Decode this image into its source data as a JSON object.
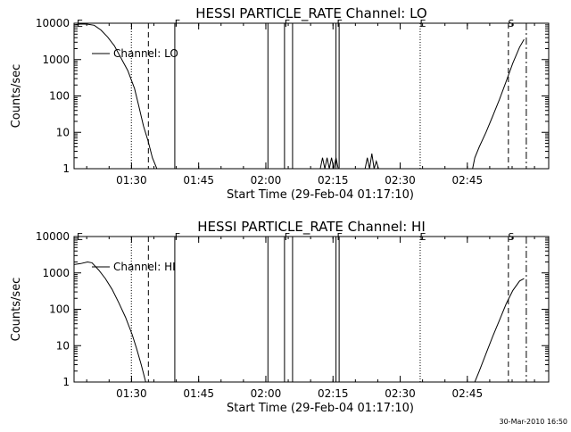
{
  "chart_data": [
    {
      "type": "line",
      "title": "HESSI PARTICLE_RATE Channel: LO",
      "xlabel": "Start Time (29-Feb-04 01:17:10)",
      "ylabel": "Counts/sec",
      "x_unit": "minutes since start",
      "xlim": [
        0,
        106
      ],
      "ylim": [
        1,
        10000
      ],
      "yscale": "log",
      "x_ticks": [
        {
          "label": "01:30",
          "value": 12.83
        },
        {
          "label": "01:45",
          "value": 27.83
        },
        {
          "label": "02:00",
          "value": 42.83
        },
        {
          "label": "02:15",
          "value": 57.83
        },
        {
          "label": "02:30",
          "value": 72.83
        },
        {
          "label": "02:45",
          "value": 87.83
        }
      ],
      "y_ticks": [
        {
          "label": "1",
          "value": 1
        },
        {
          "label": "10",
          "value": 10
        },
        {
          "label": "100",
          "value": 100
        },
        {
          "label": "1000",
          "value": 1000
        },
        {
          "label": "10000",
          "value": 10000
        }
      ],
      "legend": {
        "label": "Channel: LO",
        "placement": "top-left"
      },
      "series": [
        {
          "name": "Channel: LO",
          "segments": [
            [
              [
                0.0,
                9000
              ],
              [
                1.5,
                9500
              ],
              [
                3.0,
                9400
              ],
              [
                4.5,
                8800
              ],
              [
                6.0,
                6500
              ],
              [
                7.5,
                4200
              ],
              [
                9.0,
                2400
              ],
              [
                10.5,
                1100
              ],
              [
                12.0,
                500
              ],
              [
                13.5,
                160
              ],
              [
                14.5,
                50
              ],
              [
                15.5,
                15
              ],
              [
                16.5,
                6
              ],
              [
                17.5,
                2
              ],
              [
                18.5,
                1
              ]
            ],
            [
              [
                55.0,
                1
              ],
              [
                55.5,
                2
              ],
              [
                56.0,
                1
              ],
              [
                56.5,
                2
              ],
              [
                57.0,
                1
              ],
              [
                57.5,
                2
              ],
              [
                58.0,
                1
              ],
              [
                58.5,
                2
              ],
              [
                59.0,
                1
              ]
            ],
            [
              [
                65.0,
                1
              ],
              [
                65.5,
                2
              ],
              [
                66.0,
                1
              ],
              [
                66.5,
                2.6
              ],
              [
                67.0,
                1
              ],
              [
                67.5,
                1.6
              ],
              [
                68.0,
                1
              ]
            ],
            [
              [
                89.0,
                1
              ],
              [
                89.5,
                2
              ],
              [
                90.5,
                4
              ],
              [
                92.0,
                10
              ],
              [
                93.5,
                28
              ],
              [
                95.0,
                80
              ],
              [
                96.5,
                250
              ],
              [
                98.0,
                800
              ],
              [
                99.5,
                2200
              ],
              [
                100.5,
                3600
              ]
            ]
          ]
        }
      ],
      "event_lines": [
        {
          "x": 12.8,
          "style": "dotted"
        },
        {
          "x": 16.6,
          "style": "dashed"
        },
        {
          "x": 22.5,
          "style": "solid"
        },
        {
          "x": 43.3,
          "style": "solid"
        },
        {
          "x": 47.0,
          "style": "solid"
        },
        {
          "x": 48.8,
          "style": "solid"
        },
        {
          "x": 58.5,
          "style": "solid"
        },
        {
          "x": 59.2,
          "style": "solid"
        },
        {
          "x": 77.3,
          "style": "dotted"
        },
        {
          "x": 97.0,
          "style": "dashed"
        },
        {
          "x": 101.0,
          "style": "dashdot"
        }
      ],
      "event_markers": [
        {
          "label": "E",
          "x": 0.5
        },
        {
          "label": "F",
          "x": 22.5
        },
        {
          "label": "F",
          "x": 47.0
        },
        {
          "label": "F",
          "x": 58.7
        },
        {
          "label": "E",
          "x": 77.3
        },
        {
          "label": "S",
          "x": 97.0
        }
      ]
    },
    {
      "type": "line",
      "title": "HESSI PARTICLE_RATE Channel: HI",
      "xlabel": "Start Time (29-Feb-04 01:17:10)",
      "ylabel": "Counts/sec",
      "x_unit": "minutes since start",
      "xlim": [
        0,
        106
      ],
      "ylim": [
        1,
        10000
      ],
      "yscale": "log",
      "x_ticks": [
        {
          "label": "01:30",
          "value": 12.83
        },
        {
          "label": "01:45",
          "value": 27.83
        },
        {
          "label": "02:00",
          "value": 42.83
        },
        {
          "label": "02:15",
          "value": 57.83
        },
        {
          "label": "02:30",
          "value": 72.83
        },
        {
          "label": "02:45",
          "value": 87.83
        }
      ],
      "y_ticks": [
        {
          "label": "1",
          "value": 1
        },
        {
          "label": "10",
          "value": 10
        },
        {
          "label": "100",
          "value": 100
        },
        {
          "label": "1000",
          "value": 1000
        },
        {
          "label": "10000",
          "value": 10000
        }
      ],
      "legend": {
        "label": "Channel: HI",
        "placement": "top-left"
      },
      "series": [
        {
          "name": "Channel: HI",
          "segments": [
            [
              [
                0.0,
                1700
              ],
              [
                1.5,
                1800
              ],
              [
                3.0,
                2000
              ],
              [
                4.0,
                1900
              ],
              [
                5.5,
                1200
              ],
              [
                7.0,
                700
              ],
              [
                8.5,
                350
              ],
              [
                10.0,
                150
              ],
              [
                11.5,
                60
              ],
              [
                13.0,
                20
              ],
              [
                14.0,
                8
              ],
              [
                15.0,
                3
              ],
              [
                16.0,
                1
              ]
            ],
            [
              [
                89.5,
                1
              ],
              [
                90.5,
                2
              ],
              [
                92.0,
                6
              ],
              [
                93.5,
                18
              ],
              [
                95.0,
                50
              ],
              [
                96.5,
                140
              ],
              [
                98.0,
                330
              ],
              [
                99.5,
                600
              ],
              [
                100.5,
                700
              ]
            ]
          ]
        }
      ],
      "event_lines": [
        {
          "x": 12.8,
          "style": "dotted"
        },
        {
          "x": 16.6,
          "style": "dashed"
        },
        {
          "x": 22.5,
          "style": "solid"
        },
        {
          "x": 43.3,
          "style": "solid"
        },
        {
          "x": 47.0,
          "style": "solid"
        },
        {
          "x": 48.8,
          "style": "solid"
        },
        {
          "x": 58.5,
          "style": "solid"
        },
        {
          "x": 59.2,
          "style": "solid"
        },
        {
          "x": 77.3,
          "style": "dotted"
        },
        {
          "x": 97.0,
          "style": "dashed"
        },
        {
          "x": 101.0,
          "style": "dashdot"
        }
      ],
      "event_markers": [
        {
          "label": "E",
          "x": 0.5
        },
        {
          "label": "F",
          "x": 22.5
        },
        {
          "label": "F",
          "x": 47.0
        },
        {
          "label": "F",
          "x": 58.7
        },
        {
          "label": "E",
          "x": 77.3
        },
        {
          "label": "S",
          "x": 97.0
        }
      ]
    }
  ],
  "footer": {
    "timestamp": "30-Mar-2010 16:50"
  }
}
